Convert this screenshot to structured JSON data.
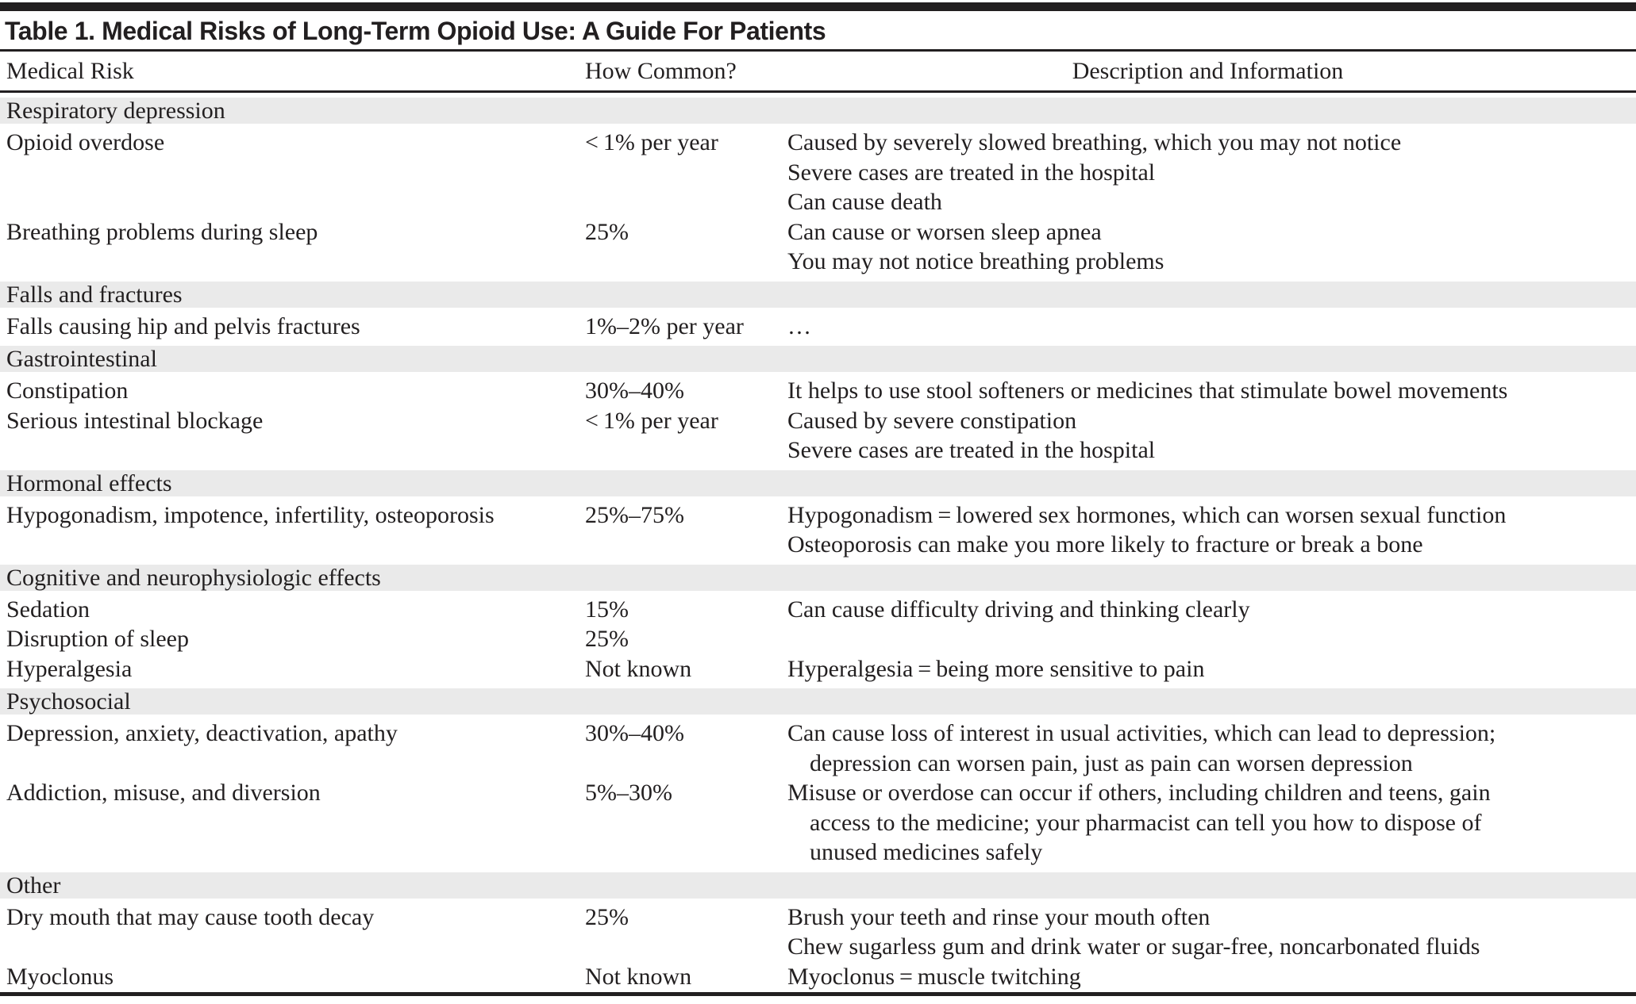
{
  "title": "Table 1. Medical Risks of Long-Term Opioid Use: A Guide For Patients",
  "columns": {
    "risk": "Medical Risk",
    "common": "How Common?",
    "description": "Description and Information"
  },
  "colors": {
    "ink": "#221f20",
    "band_bg": "#eaeaea"
  },
  "sections": [
    {
      "header": "Respiratory depression",
      "rows": [
        {
          "risk": "Opioid overdose",
          "common": "< 1% per year",
          "desc": [
            {
              "text": "Caused by severely slowed breathing, which you may not notice",
              "indent": false
            },
            {
              "text": "Severe cases are treated in the hospital",
              "indent": false
            },
            {
              "text": "Can cause death",
              "indent": false
            }
          ]
        },
        {
          "risk": "Breathing problems during sleep",
          "common": "25%",
          "desc": [
            {
              "text": "Can cause or worsen sleep apnea",
              "indent": false
            },
            {
              "text": "You may not notice breathing problems",
              "indent": false
            }
          ]
        }
      ]
    },
    {
      "header": "Falls and fractures",
      "rows": [
        {
          "risk": "Falls causing hip and pelvis fractures",
          "common": "1%–2% per year",
          "desc": [
            {
              "text": "…",
              "indent": false
            }
          ]
        }
      ]
    },
    {
      "header": "Gastrointestinal",
      "rows": [
        {
          "risk": "Constipation",
          "common": "30%–40%",
          "desc": [
            {
              "text": "It helps to use stool softeners or medicines that stimulate bowel movements",
              "indent": false
            }
          ]
        },
        {
          "risk": "Serious intestinal blockage",
          "common": "< 1% per year",
          "desc": [
            {
              "text": "Caused by severe constipation",
              "indent": false
            },
            {
              "text": "Severe cases are treated in the hospital",
              "indent": false
            }
          ]
        }
      ]
    },
    {
      "header": "Hormonal effects",
      "rows": [
        {
          "risk": "Hypogonadism, impotence, infertility, osteoporosis",
          "common": "25%–75%",
          "desc": [
            {
              "text": "Hypogonadism = lowered sex hormones, which can worsen sexual function",
              "indent": false
            },
            {
              "text": "Osteoporosis can make you more likely to fracture or break a bone",
              "indent": false
            }
          ]
        }
      ]
    },
    {
      "header": "Cognitive and neurophysiologic effects",
      "rows": [
        {
          "risk": "Sedation",
          "common": "15%",
          "desc": [
            {
              "text": "Can cause difficulty driving and thinking clearly",
              "indent": false
            }
          ]
        },
        {
          "risk": "Disruption of sleep",
          "common": "25%",
          "desc": []
        },
        {
          "risk": "Hyperalgesia",
          "common": "Not known",
          "desc": [
            {
              "text": "Hyperalgesia = being more sensitive to pain",
              "indent": false
            }
          ]
        }
      ]
    },
    {
      "header": "Psychosocial",
      "rows": [
        {
          "risk": "Depression, anxiety, deactivation, apathy",
          "common": "30%–40%",
          "desc": [
            {
              "text": "Can cause loss of interest in usual activities, which can lead to depression;",
              "indent": false
            },
            {
              "text": "depression can worsen pain, just as pain can worsen depression",
              "indent": true
            }
          ]
        },
        {
          "risk": "Addiction, misuse, and diversion",
          "common": "5%–30%",
          "desc": [
            {
              "text": "Misuse or overdose can occur if others, including children and teens, gain",
              "indent": false
            },
            {
              "text": "access to the medicine; your pharmacist can tell you how to dispose of",
              "indent": true
            },
            {
              "text": "unused medicines safely",
              "indent": true
            }
          ]
        }
      ]
    },
    {
      "header": "Other",
      "rows": [
        {
          "risk": "Dry mouth that may cause tooth decay",
          "common": "25%",
          "desc": [
            {
              "text": "Brush your teeth and rinse your mouth often",
              "indent": false
            },
            {
              "text": "Chew sugarless gum and drink water or sugar-free, noncarbonated fluids",
              "indent": false
            }
          ]
        },
        {
          "risk": "Myoclonus",
          "common": "Not known",
          "desc": [
            {
              "text": "Myoclonus = muscle twitching",
              "indent": false
            }
          ]
        }
      ]
    }
  ]
}
